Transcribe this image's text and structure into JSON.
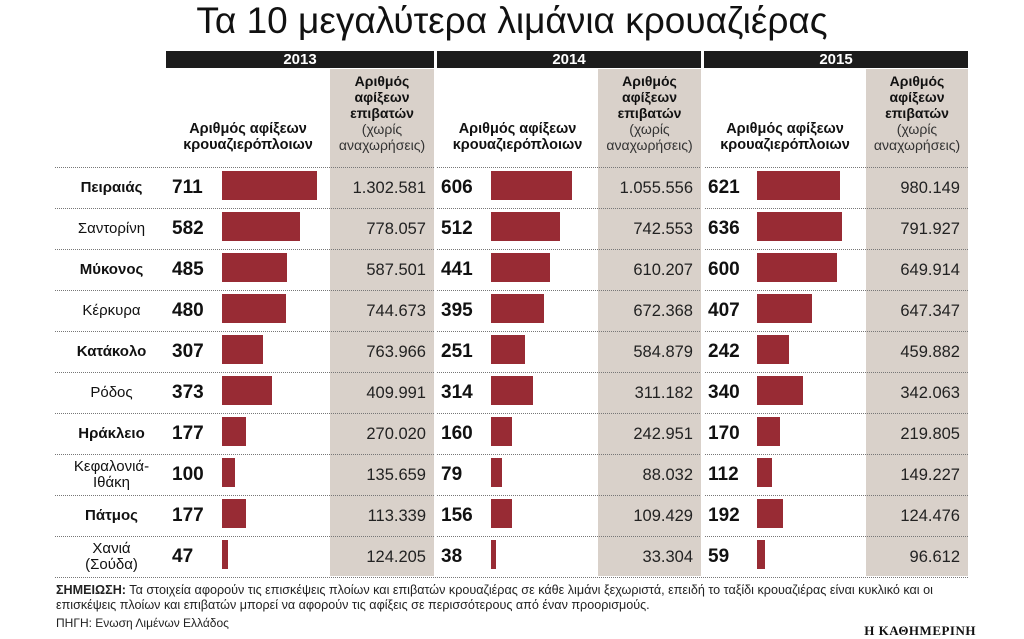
{
  "title": "Τα 10 μεγαλύτερα λιμάνια κρουαζιέρας",
  "headers": {
    "ships_line1": "Αριθμός αφίξεων",
    "ships_line2": "κρουαζιερόπλοιων",
    "pax_line1": "Αριθμός",
    "pax_line2": "αφίξεων",
    "pax_line3": "επιβατών",
    "pax_line4": "(χωρίς",
    "pax_line5": "αναχωρήσεις)"
  },
  "note": {
    "label": "ΣΗΜΕΙΩΣΗ:",
    "text": "Τα στοιχεία αφορούν τις επισκέψεις πλοίων και επιβατών κρουαζιέρας σε κάθε λιμάνι ξεχωριστά, επειδή το ταξίδι κρουαζιέρας είναι κυκλικό και οι επισκέψεις πλοίων και επιβατών μπορεί να αφορούν τις αφίξεις σε περισσότερους από έναν προορισμούς."
  },
  "source": "ΠΗΓΗ: Ενωση Λιμένων Ελλάδος",
  "brand": "Η ΚΑΘΗΜΕΡΙΝΗ",
  "colors": {
    "bar": "#982b34",
    "shade": "#d9d1ca",
    "header_bg": "#1c1c1c"
  },
  "chart_data": {
    "type": "bar",
    "years": [
      "2013",
      "2014",
      "2015"
    ],
    "categories": [
      {
        "lines": [
          "Πειραιάς"
        ],
        "bold": true
      },
      {
        "lines": [
          "Σαντορίνη"
        ],
        "bold": false
      },
      {
        "lines": [
          "Μύκονος"
        ],
        "bold": true
      },
      {
        "lines": [
          "Κέρκυρα"
        ],
        "bold": false
      },
      {
        "lines": [
          "Κατάκολο"
        ],
        "bold": true
      },
      {
        "lines": [
          "Ρόδος"
        ],
        "bold": false
      },
      {
        "lines": [
          "Ηράκλειο"
        ],
        "bold": true
      },
      {
        "lines": [
          "Κεφαλονιά-",
          "Ιθάκη"
        ],
        "bold": false
      },
      {
        "lines": [
          "Πάτμος"
        ],
        "bold": true
      },
      {
        "lines": [
          "Χανιά",
          "(Σούδα)"
        ],
        "bold": false
      }
    ],
    "series": [
      {
        "year": "2013",
        "ships": [
          711,
          582,
          485,
          480,
          307,
          373,
          177,
          100,
          177,
          47
        ],
        "passengers": [
          "1.302.581",
          "778.057",
          "587.501",
          "744.673",
          "763.966",
          "409.991",
          "270.020",
          "135.659",
          "113.339",
          "124.205"
        ]
      },
      {
        "year": "2014",
        "ships": [
          606,
          512,
          441,
          395,
          251,
          314,
          160,
          79,
          156,
          38
        ],
        "passengers": [
          "1.055.556",
          "742.553",
          "610.207",
          "672.368",
          "584.879",
          "311.182",
          "242.951",
          "88.032",
          "109.429",
          "33.304"
        ]
      },
      {
        "year": "2015",
        "ships": [
          621,
          636,
          600,
          407,
          242,
          340,
          170,
          112,
          192,
          59
        ],
        "passengers": [
          "980.149",
          "791.927",
          "649.914",
          "647.347",
          "459.882",
          "342.063",
          "219.805",
          "149.227",
          "124.476",
          "96.612"
        ]
      }
    ]
  }
}
